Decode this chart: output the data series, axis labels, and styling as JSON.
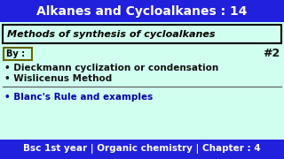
{
  "title": "Alkanes and Cycloalkanes : 14",
  "title_bg": "#2020dd",
  "title_color": "#ffffff",
  "body_bg": "#d0fff0",
  "subtitle": "Methods of synthesis of cycloalkanes",
  "subtitle_box_color": "#000000",
  "by_label": "By :",
  "by_box_color": "#666600",
  "hash2": "#2",
  "bullet1": "• Dieckmann cyclization or condensation",
  "bullet2": "• Wislicenus Method",
  "bullet3": "• Blanc's Rule and examples",
  "footer": "Bsc 1st year | Organic chemistry | Chapter : 4",
  "footer_bg": "#2020dd",
  "footer_color": "#ffffff",
  "separator_color": "#555555",
  "text_color": "#000000",
  "bullet_color": "#111111",
  "bullet3_color": "#0000aa",
  "hash2_color": "#111111"
}
